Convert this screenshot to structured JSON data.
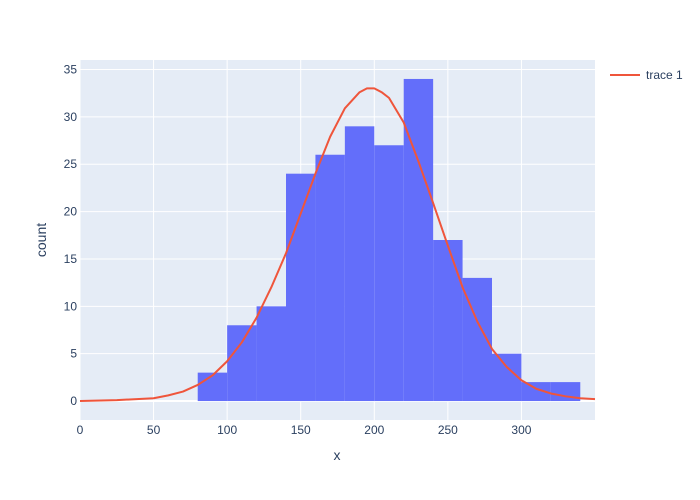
{
  "chart_data": {
    "type": "bar",
    "xlabel": "x",
    "ylabel": "count",
    "xlim": [
      0,
      350
    ],
    "ylim": [
      -2,
      36
    ],
    "x_ticks": [
      0,
      50,
      100,
      150,
      200,
      250,
      300
    ],
    "y_ticks": [
      0,
      5,
      10,
      15,
      20,
      25,
      30,
      35
    ],
    "grid": true,
    "legend_position": "top-right",
    "histogram": {
      "bin_edges": [
        80,
        100,
        120,
        140,
        160,
        180,
        200,
        220,
        240,
        260,
        280,
        300,
        320,
        340
      ],
      "counts": [
        3,
        8,
        10,
        24,
        26,
        29,
        27,
        34,
        17,
        13,
        5,
        2,
        2
      ],
      "color": "#636efa"
    },
    "series": [
      {
        "name": "trace 1",
        "type": "line",
        "color": "#ef553b",
        "x": [
          0,
          25,
          50,
          60,
          70,
          80,
          90,
          100,
          110,
          120,
          130,
          140,
          150,
          160,
          170,
          180,
          190,
          195,
          200,
          205,
          210,
          220,
          230,
          240,
          250,
          260,
          270,
          280,
          290,
          300,
          310,
          320,
          330,
          340,
          350
        ],
        "y": [
          0.0,
          0.1,
          0.3,
          0.6,
          1.0,
          1.7,
          2.7,
          4.2,
          6.2,
          8.8,
          12.0,
          15.6,
          19.8,
          24.0,
          27.9,
          30.9,
          32.6,
          33.0,
          33.0,
          32.6,
          32.0,
          29.4,
          25.3,
          20.9,
          16.4,
          12.0,
          8.4,
          5.5,
          3.6,
          2.2,
          1.3,
          0.8,
          0.5,
          0.3,
          0.2
        ]
      }
    ]
  }
}
